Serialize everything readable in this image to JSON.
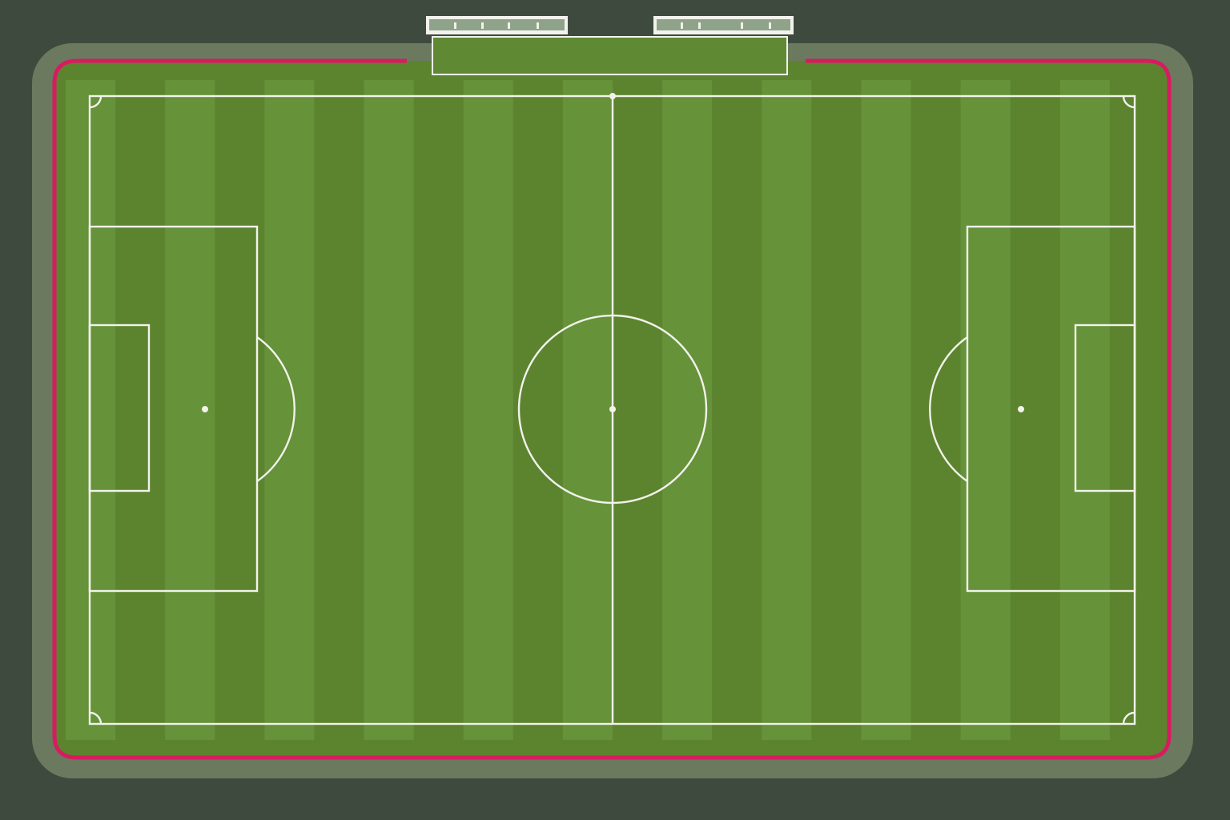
{
  "scene": "football-pitch",
  "colors": {
    "background": "#3f4a3f",
    "surround": "#6b7a5e",
    "grass_light": "#66923a",
    "grass_dark": "#5c842f",
    "lines": "#f2f2ec",
    "boundary": "#d81b60",
    "bench_frame": "#f2f2ec",
    "bench_fill": "#8fa38a"
  },
  "benches": [
    {
      "id": "home",
      "label": ""
    },
    {
      "id": "away",
      "label": ""
    }
  ],
  "pitch": {
    "stripes": 22,
    "markings": [
      "touchlines",
      "halfway-line",
      "center-circle",
      "center-spot",
      "left-penalty-area",
      "left-goal-area",
      "left-penalty-spot",
      "left-penalty-arc",
      "right-penalty-area",
      "right-goal-area",
      "right-penalty-spot",
      "right-penalty-arc",
      "corner-arcs"
    ]
  }
}
